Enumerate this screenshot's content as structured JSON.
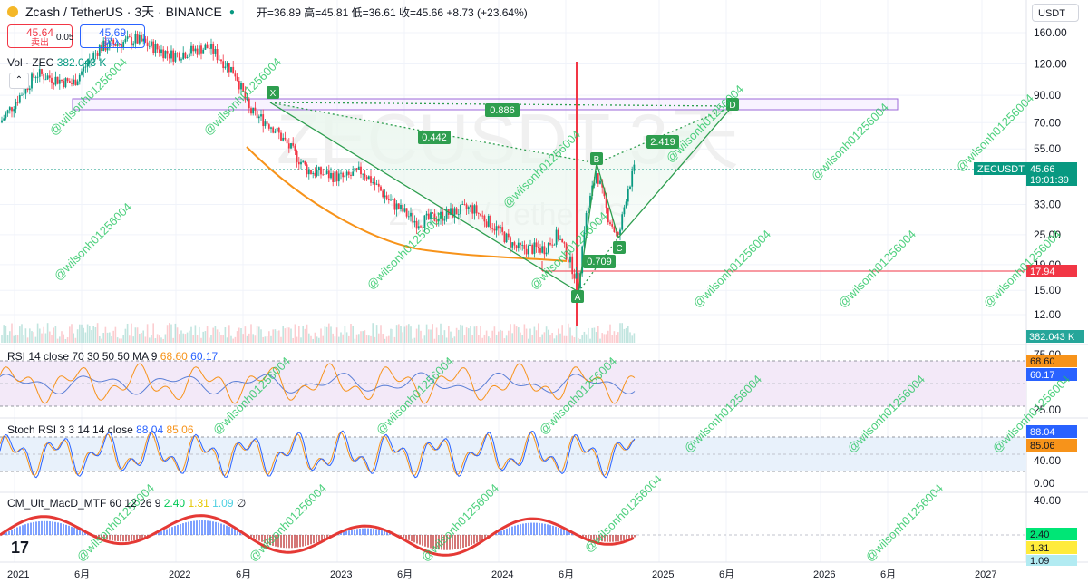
{
  "header": {
    "title": "Zcash / TetherUS · 3天 · BINANCE",
    "ohlc": "开=36.89 高=45.81 低=36.61 收=45.66 +8.73 (+23.64%)",
    "sell_price": "45.64",
    "sell_label": "卖出",
    "spread": "0.05",
    "buy_price": "45.69",
    "buy_label": "买入",
    "volume_label": "Vol · ZEC",
    "volume_value": "382.043 K",
    "currency": "USDT"
  },
  "price_axis": {
    "ticks": [
      {
        "label": "160.00",
        "v": 160
      },
      {
        "label": "120.00",
        "v": 120
      },
      {
        "label": "90.00",
        "v": 90
      },
      {
        "label": "70.00",
        "v": 70
      },
      {
        "label": "55.00",
        "v": 55
      },
      {
        "label": "33.00",
        "v": 33
      },
      {
        "label": "25.00",
        "v": 25
      },
      {
        "label": "19.00",
        "v": 19
      },
      {
        "label": "15.00",
        "v": 15
      },
      {
        "label": "12.00",
        "v": 12
      }
    ],
    "symbol_tag": "ZECUSDT",
    "last_price": "45.66",
    "countdown": "19:01:39",
    "level_tag": "17.94",
    "volume_tag": "382.043 K"
  },
  "time_axis": [
    "2021",
    "6月",
    "2022",
    "6月",
    "2023",
    "6月",
    "2024",
    "6月",
    "2025",
    "6月",
    "2026",
    "6月",
    "2027"
  ],
  "pattern": {
    "points": [
      {
        "label": "X",
        "price": 83
      },
      {
        "label": "A",
        "price": 15.5
      },
      {
        "label": "B",
        "price": 46
      },
      {
        "label": "C",
        "price": 23
      },
      {
        "label": "D",
        "price": 78
      }
    ],
    "ratios": [
      "0.886",
      "0.442",
      "2.419",
      "0.709"
    ],
    "watermark": "ZECUSDT 3天",
    "watermark_sub": "Zcash / TetherUS"
  },
  "rsi": {
    "label": "RSI 14 close 70 30 50 50 MA 9",
    "value": "68.60",
    "ma_value": "60.17",
    "ticks": [
      "75.00",
      "25.00"
    ]
  },
  "stoch": {
    "label": "Stoch RSI 3 3 14 14 close",
    "k": "88.04",
    "d": "85.06",
    "ticks": [
      "40.00",
      "0.00"
    ]
  },
  "macd": {
    "label": "CM_Ult_MacD_MTF 60 12 26 9",
    "v1": "2.40",
    "v2": "1.31",
    "v3": "1.09",
    "symbol": "∅",
    "ticks": [
      "40.00"
    ]
  },
  "watermark_text": "@wilsonh01256004",
  "colors": {
    "up": "#089981",
    "down": "#f23645",
    "pattern": "#2e9e4f",
    "pattern_text": "#ffffff",
    "orange": "#f7931a",
    "rsi_line": "#7e57c2",
    "macd_green": "#00e676",
    "macd_red": "#ff1744"
  },
  "chart_data": {
    "type": "candlestick",
    "symbol": "ZECUSDT",
    "last": 45.66,
    "key_levels": [
      90,
      83,
      17.94
    ],
    "harmonic_points": {
      "X": 83,
      "A": 15.5,
      "B": 46,
      "C": 23,
      "D": 78
    }
  }
}
